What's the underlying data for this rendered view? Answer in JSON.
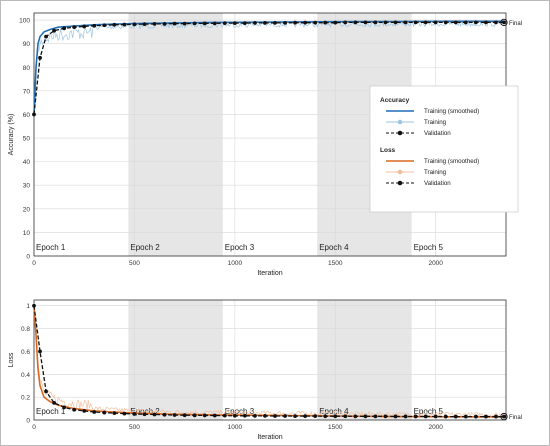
{
  "chart_data": [
    {
      "type": "line",
      "title": "",
      "xlabel": "Iteration",
      "ylabel": "Accuracy (%)",
      "xlim": [
        0,
        2350
      ],
      "ylim": [
        0,
        103
      ],
      "xticks": [
        0,
        500,
        1000,
        1500,
        2000
      ],
      "yticks": [
        0,
        10,
        20,
        30,
        40,
        50,
        60,
        70,
        80,
        90,
        100
      ],
      "grid": true,
      "epochs": [
        {
          "label": "Epoch 1",
          "start": 0,
          "end": 470
        },
        {
          "label": "Epoch 2",
          "start": 470,
          "end": 940
        },
        {
          "label": "Epoch 3",
          "start": 940,
          "end": 1410
        },
        {
          "label": "Epoch 4",
          "start": 1410,
          "end": 1880
        },
        {
          "label": "Epoch 5",
          "start": 1880,
          "end": 2350
        }
      ],
      "final_label": "Final",
      "series": [
        {
          "name": "Training (smoothed)",
          "color": "#1f6fb5",
          "x": [
            0,
            10,
            20,
            30,
            50,
            80,
            120,
            200,
            300,
            400,
            500,
            700,
            900,
            1200,
            1500,
            1800,
            2100,
            2340
          ],
          "values": [
            60,
            80,
            90,
            93,
            95,
            96,
            97,
            97.5,
            98,
            98.3,
            98.5,
            98.8,
            99,
            99.2,
            99.3,
            99.4,
            99.5,
            99.5
          ]
        },
        {
          "name": "Validation",
          "color": "#111111",
          "x": [
            0,
            30,
            60,
            100,
            150,
            200,
            250,
            300,
            350,
            400,
            450,
            500,
            550,
            600,
            650,
            700,
            750,
            800,
            850,
            900,
            950,
            1000,
            1050,
            1100,
            1150,
            1200,
            1250,
            1300,
            1350,
            1400,
            1450,
            1500,
            1550,
            1600,
            1650,
            1700,
            1750,
            1800,
            1850,
            1900,
            1950,
            2000,
            2050,
            2100,
            2150,
            2200,
            2250,
            2300,
            2340
          ],
          "values": [
            60,
            84,
            93,
            95.5,
            96.5,
            97,
            97.3,
            97.6,
            97.8,
            98,
            98.1,
            98.2,
            98.3,
            98.4,
            98.4,
            98.5,
            98.5,
            98.6,
            98.6,
            98.6,
            98.7,
            98.7,
            98.7,
            98.8,
            98.8,
            98.8,
            98.8,
            98.9,
            98.9,
            98.9,
            98.9,
            98.9,
            99,
            99,
            99,
            99,
            99,
            99,
            99,
            99,
            99,
            99,
            99,
            99,
            99,
            99,
            99,
            99,
            99
          ]
        }
      ]
    },
    {
      "type": "line",
      "title": "",
      "xlabel": "Iteration",
      "ylabel": "Loss",
      "xlim": [
        0,
        2350
      ],
      "ylim": [
        0,
        1.05
      ],
      "xticks": [
        0,
        500,
        1000,
        1500,
        2000
      ],
      "yticks": [
        0,
        0.2,
        0.4,
        0.6,
        0.8,
        1
      ],
      "grid": true,
      "epochs": [
        {
          "label": "Epoch 1",
          "start": 0,
          "end": 470
        },
        {
          "label": "Epoch 2",
          "start": 470,
          "end": 940
        },
        {
          "label": "Epoch 3",
          "start": 940,
          "end": 1410
        },
        {
          "label": "Epoch 4",
          "start": 1410,
          "end": 1880
        },
        {
          "label": "Epoch 5",
          "start": 1880,
          "end": 2350
        }
      ],
      "final_label": "Final",
      "series": [
        {
          "name": "Training (smoothed)",
          "color": "#d9691e",
          "x": [
            0,
            10,
            20,
            30,
            50,
            80,
            120,
            200,
            300,
            400,
            500,
            700,
            900,
            1200,
            1500,
            1800,
            2100,
            2340
          ],
          "values": [
            1,
            0.75,
            0.45,
            0.3,
            0.2,
            0.16,
            0.13,
            0.1,
            0.08,
            0.07,
            0.06,
            0.05,
            0.045,
            0.04,
            0.035,
            0.03,
            0.028,
            0.027
          ]
        },
        {
          "name": "Validation",
          "color": "#111111",
          "x": [
            0,
            30,
            60,
            100,
            150,
            200,
            250,
            300,
            350,
            400,
            450,
            500,
            550,
            600,
            650,
            700,
            750,
            800,
            850,
            900,
            950,
            1000,
            1050,
            1100,
            1150,
            1200,
            1250,
            1300,
            1350,
            1400,
            1450,
            1500,
            1550,
            1600,
            1650,
            1700,
            1750,
            1800,
            1850,
            1900,
            1950,
            2000,
            2050,
            2100,
            2150,
            2200,
            2250,
            2300,
            2340
          ],
          "values": [
            1,
            0.6,
            0.25,
            0.15,
            0.11,
            0.09,
            0.08,
            0.07,
            0.065,
            0.06,
            0.056,
            0.053,
            0.05,
            0.048,
            0.046,
            0.044,
            0.042,
            0.041,
            0.04,
            0.039,
            0.038,
            0.037,
            0.037,
            0.036,
            0.036,
            0.035,
            0.035,
            0.034,
            0.034,
            0.034,
            0.033,
            0.033,
            0.033,
            0.032,
            0.032,
            0.032,
            0.032,
            0.031,
            0.031,
            0.031,
            0.031,
            0.031,
            0.03,
            0.03,
            0.03,
            0.03,
            0.03,
            0.03,
            0.03
          ]
        }
      ]
    }
  ],
  "legend": {
    "placement": "right",
    "groups": [
      {
        "title": "Accuracy",
        "entries": [
          {
            "label": "Training (smoothed)",
            "color": "#1f6fb5",
            "style": "solid"
          },
          {
            "label": "Training",
            "color": "#9ec6e3",
            "style": "marker"
          },
          {
            "label": "Validation",
            "color": "#111111",
            "style": "dashed-marker"
          }
        ]
      },
      {
        "title": "Loss",
        "entries": [
          {
            "label": "Training (smoothed)",
            "color": "#d9691e",
            "style": "solid"
          },
          {
            "label": "Training",
            "color": "#f0bfa0",
            "style": "marker"
          },
          {
            "label": "Validation",
            "color": "#111111",
            "style": "dashed-marker"
          }
        ]
      }
    ]
  },
  "colors": {
    "epoch_shade": "#e6e6e6",
    "grid": "#d8d8d8",
    "axis": "#333333",
    "accuracy_raw": "#9ec6e3",
    "loss_raw": "#f0bfa0"
  }
}
